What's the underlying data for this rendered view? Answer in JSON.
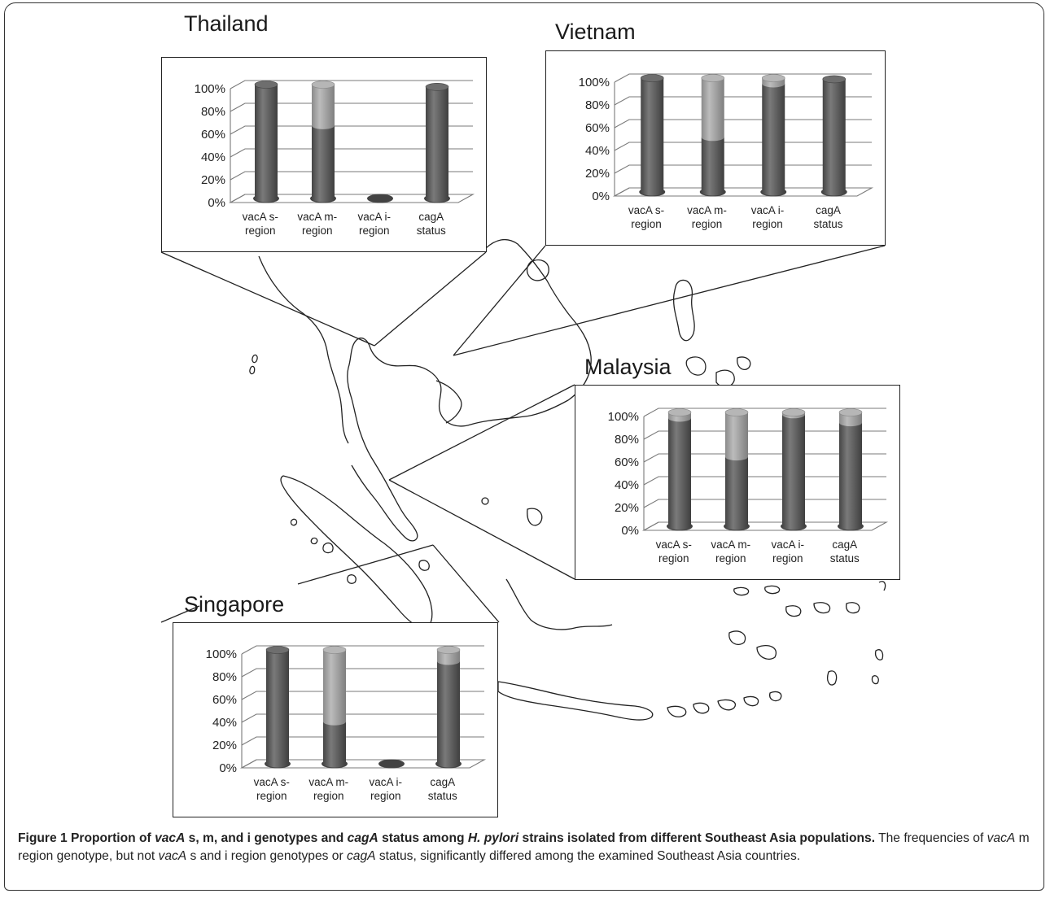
{
  "figure": {
    "caption_parts": [
      {
        "text": "Figure 1 Proportion of ",
        "bold": true,
        "italic": false
      },
      {
        "text": "vacA",
        "bold": true,
        "italic": true
      },
      {
        "text": " s, m, and i genotypes and ",
        "bold": true,
        "italic": false
      },
      {
        "text": "cagA",
        "bold": true,
        "italic": true
      },
      {
        "text": " status among ",
        "bold": true,
        "italic": false
      },
      {
        "text": "H. pylori",
        "bold": true,
        "italic": true
      },
      {
        "text": " strains isolated from different Southeast Asia populations.",
        "bold": true,
        "italic": false
      },
      {
        "text": " The frequencies of ",
        "bold": false,
        "italic": false
      },
      {
        "text": "vacA",
        "bold": false,
        "italic": true
      },
      {
        "text": " m region genotype, but not ",
        "bold": false,
        "italic": false
      },
      {
        "text": "vacA",
        "bold": false,
        "italic": true
      },
      {
        "text": " s and i region genotypes or ",
        "bold": false,
        "italic": false
      },
      {
        "text": "cagA",
        "bold": false,
        "italic": true
      },
      {
        "text": " status, significantly differed among the examined Southeast Asia countries.",
        "bold": false,
        "italic": false
      }
    ]
  },
  "colors": {
    "dark_bar": "#545454",
    "light_bar": "#a9a9a9",
    "gridline": "#7a7a7a",
    "map_outline": "#222222"
  },
  "chart_data": [
    {
      "type": "bar",
      "stacked": true,
      "title": "Thailand",
      "categories": [
        "vacA s-region",
        "vacA m-region",
        "vacA i-region",
        "cagA status"
      ],
      "category_lines": [
        [
          "vacA s-",
          "region"
        ],
        [
          "vacA m-",
          "region"
        ],
        [
          "vacA i-",
          "region"
        ],
        [
          "cagA",
          "status"
        ]
      ],
      "series": [
        {
          "values": [
            100,
            64,
            0,
            98
          ]
        },
        {
          "values": [
            0,
            36,
            0,
            0
          ]
        }
      ],
      "yticks": [
        "0%",
        "20%",
        "40%",
        "60%",
        "80%",
        "100%"
      ],
      "ylim": [
        0,
        100
      ],
      "grid": true
    },
    {
      "type": "bar",
      "stacked": true,
      "title": "Vietnam",
      "categories": [
        "vacA s-region",
        "vacA m-region",
        "vacA i-region",
        "cagA status"
      ],
      "category_lines": [
        [
          "vacA s-",
          "region"
        ],
        [
          "vacA m-",
          "region"
        ],
        [
          "vacA i-",
          "region"
        ],
        [
          "cagA",
          "status"
        ]
      ],
      "series": [
        {
          "values": [
            100,
            48,
            95,
            99
          ]
        },
        {
          "values": [
            0,
            52,
            5,
            0
          ]
        }
      ],
      "yticks": [
        "0%",
        "20%",
        "40%",
        "60%",
        "80%",
        "100%"
      ],
      "ylim": [
        0,
        100
      ],
      "grid": true
    },
    {
      "type": "bar",
      "stacked": true,
      "title": "Malaysia",
      "categories": [
        "vacA s-region",
        "vacA m-region",
        "vacA i-region",
        "cagA status"
      ],
      "category_lines": [
        [
          "vacA s-",
          "region"
        ],
        [
          "vacA m-",
          "region"
        ],
        [
          "vacA i-",
          "region"
        ],
        [
          "cagA",
          "status"
        ]
      ],
      "series": [
        {
          "values": [
            95,
            61,
            98,
            91
          ]
        },
        {
          "values": [
            5,
            39,
            2,
            9
          ]
        }
      ],
      "yticks": [
        "0%",
        "20%",
        "40%",
        "60%",
        "80%",
        "100%"
      ],
      "ylim": [
        0,
        100
      ],
      "grid": true
    },
    {
      "type": "bar",
      "stacked": true,
      "title": "Singapore",
      "categories": [
        "vacA s-region",
        "vacA m-region",
        "vacA i-region",
        "cagA status"
      ],
      "category_lines": [
        [
          "vacA s-",
          "region"
        ],
        [
          "vacA m-",
          "region"
        ],
        [
          "vacA i-",
          "region"
        ],
        [
          "cagA",
          "status"
        ]
      ],
      "series": [
        {
          "values": [
            100,
            37,
            0,
            90
          ]
        },
        {
          "values": [
            0,
            63,
            0,
            10
          ]
        }
      ],
      "yticks": [
        "0%",
        "20%",
        "40%",
        "60%",
        "80%",
        "100%"
      ],
      "ylim": [
        0,
        100
      ],
      "grid": true
    }
  ]
}
